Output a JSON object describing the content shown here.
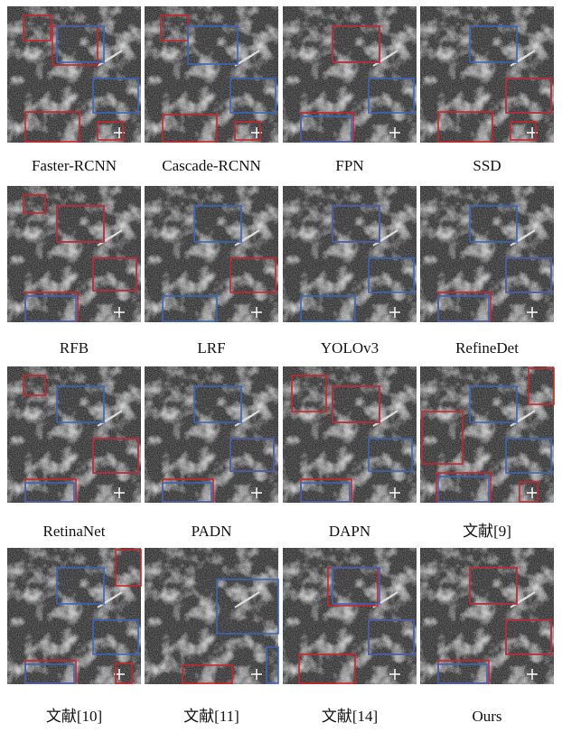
{
  "figure": {
    "captions": [
      "Faster-RCNN",
      "Cascade-RCNN",
      "FPN",
      "SSD",
      "RFB",
      "LRF",
      "YOLOv3",
      "RefineDet",
      "RetinaNet",
      "PADN",
      "DAPN",
      "文献[9]",
      "文献[10]",
      "文献[11]",
      "文献[14]",
      "Ours"
    ]
  }
}
